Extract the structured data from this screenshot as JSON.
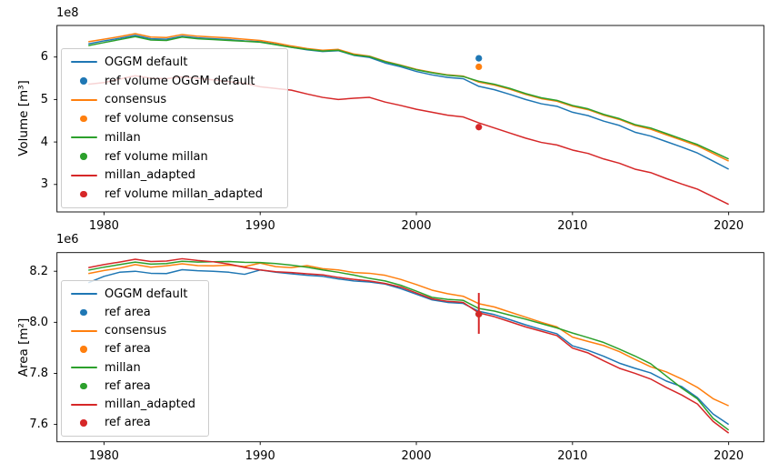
{
  "figure": {
    "background": "#ffffff",
    "border_color": "#000000",
    "legend_edge_color": "#cccccc"
  },
  "chart_data": [
    {
      "type": "line",
      "title": "",
      "xlabel": "",
      "ylabel": "Volume [m³]",
      "offset_text": "1e8",
      "unit_scale": "1e8",
      "grid": false,
      "x": [
        1979,
        1980,
        1981,
        1982,
        1983,
        1984,
        1985,
        1986,
        1987,
        1988,
        1989,
        1990,
        1991,
        1992,
        1993,
        1994,
        1995,
        1996,
        1997,
        1998,
        1999,
        2000,
        2001,
        2002,
        2003,
        2004,
        2005,
        2006,
        2007,
        2008,
        2009,
        2010,
        2011,
        2012,
        2013,
        2014,
        2015,
        2016,
        2017,
        2018,
        2019,
        2020
      ],
      "xlim": [
        1976.99,
        2022.25
      ],
      "ylim": [
        2.353,
        6.743
      ],
      "xticks": {
        "values": [
          1980,
          1990,
          2000,
          2010,
          2020
        ],
        "labels": [
          "1980",
          "1990",
          "2000",
          "2010",
          "2020"
        ]
      },
      "yticks": {
        "values": [
          3,
          4,
          5,
          6
        ],
        "labels": [
          "3",
          "4",
          "5",
          "6"
        ]
      },
      "series": [
        {
          "name": "OGGM default",
          "color": "#1f77b4",
          "values": [
            6.31,
            6.38,
            6.44,
            6.51,
            6.43,
            6.42,
            6.49,
            6.45,
            6.43,
            6.41,
            6.38,
            6.36,
            6.3,
            6.23,
            6.17,
            6.13,
            6.15,
            6.04,
            5.99,
            5.86,
            5.77,
            5.66,
            5.58,
            5.52,
            5.49,
            5.31,
            5.23,
            5.12,
            5.0,
            4.9,
            4.84,
            4.7,
            4.62,
            4.49,
            4.39,
            4.23,
            4.14,
            4.01,
            3.88,
            3.74,
            3.55,
            3.36
          ]
        },
        {
          "name": "consensus",
          "color": "#ff7f0e",
          "values": [
            6.36,
            6.42,
            6.48,
            6.55,
            6.47,
            6.46,
            6.53,
            6.49,
            6.47,
            6.45,
            6.42,
            6.39,
            6.33,
            6.26,
            6.2,
            6.16,
            6.18,
            6.07,
            6.02,
            5.9,
            5.81,
            5.71,
            5.64,
            5.58,
            5.55,
            5.41,
            5.34,
            5.24,
            5.12,
            5.02,
            4.96,
            4.84,
            4.76,
            4.63,
            4.53,
            4.39,
            4.3,
            4.17,
            4.04,
            3.91,
            3.73,
            3.55
          ]
        },
        {
          "name": "millan",
          "color": "#2ca02c",
          "values": [
            6.27,
            6.34,
            6.41,
            6.48,
            6.4,
            6.39,
            6.47,
            6.43,
            6.41,
            6.39,
            6.37,
            6.35,
            6.29,
            6.23,
            6.18,
            6.14,
            6.16,
            6.05,
            6.01,
            5.89,
            5.8,
            5.7,
            5.63,
            5.57,
            5.54,
            5.43,
            5.36,
            5.26,
            5.14,
            5.04,
            4.98,
            4.86,
            4.78,
            4.65,
            4.55,
            4.41,
            4.33,
            4.2,
            4.07,
            3.94,
            3.77,
            3.6
          ]
        },
        {
          "name": "millan_adapted",
          "color": "#d62728",
          "values": [
            5.36,
            5.4,
            5.48,
            5.56,
            5.5,
            5.49,
            5.53,
            5.5,
            5.46,
            5.42,
            5.38,
            5.3,
            5.26,
            5.22,
            5.13,
            5.05,
            5.0,
            5.03,
            5.05,
            4.94,
            4.86,
            4.77,
            4.7,
            4.63,
            4.59,
            4.45,
            4.33,
            4.21,
            4.09,
            3.99,
            3.93,
            3.81,
            3.73,
            3.6,
            3.5,
            3.36,
            3.28,
            3.14,
            3.01,
            2.89,
            2.71,
            2.53
          ]
        }
      ],
      "markers": [
        {
          "name": "ref volume OGGM default",
          "color": "#1f77b4",
          "x": 2004,
          "y": 5.97
        },
        {
          "name": "ref volume consensus",
          "color": "#ff7f0e",
          "x": 2004,
          "y": 5.77
        },
        {
          "name": "ref volume millan",
          "color": "#2ca02c",
          "x": 2004,
          "y": null
        },
        {
          "name": "ref volume millan_adapted",
          "color": "#d62728",
          "x": 2004,
          "y": 4.35
        }
      ],
      "legend": {
        "position": "upper left",
        "entries": [
          {
            "type": "line",
            "color": "#1f77b4",
            "label": "OGGM default"
          },
          {
            "type": "marker",
            "color": "#1f77b4",
            "label": "ref volume OGGM default"
          },
          {
            "type": "line",
            "color": "#ff7f0e",
            "label": "consensus"
          },
          {
            "type": "marker",
            "color": "#ff7f0e",
            "label": "ref volume consensus"
          },
          {
            "type": "line",
            "color": "#2ca02c",
            "label": "millan"
          },
          {
            "type": "marker",
            "color": "#2ca02c",
            "label": "ref volume millan"
          },
          {
            "type": "line",
            "color": "#d62728",
            "label": "millan_adapted"
          },
          {
            "type": "marker",
            "color": "#d62728",
            "label": "ref volume millan_adapted"
          }
        ]
      }
    },
    {
      "type": "line",
      "title": "",
      "xlabel": "",
      "ylabel": "Area [m²]",
      "offset_text": "1e6",
      "unit_scale": "1e6",
      "grid": false,
      "x": [
        1979,
        1980,
        1981,
        1982,
        1983,
        1984,
        1985,
        1986,
        1987,
        1988,
        1989,
        1990,
        1991,
        1992,
        1993,
        1994,
        1995,
        1996,
        1997,
        1998,
        1999,
        2000,
        2001,
        2002,
        2003,
        2004,
        2005,
        2006,
        2007,
        2008,
        2009,
        2010,
        2011,
        2012,
        2013,
        2014,
        2015,
        2016,
        2017,
        2018,
        2019,
        2020
      ],
      "xlim": [
        1976.99,
        2022.25
      ],
      "ylim": [
        7.532,
        8.273
      ],
      "xticks": {
        "values": [
          1980,
          1990,
          2000,
          2010,
          2020
        ],
        "labels": [
          "1980",
          "1990",
          "2000",
          "2010",
          "2020"
        ]
      },
      "yticks": {
        "values": [
          7.6,
          7.8,
          8.0,
          8.2
        ],
        "labels": [
          "7.6",
          "7.8",
          "8.0",
          "8.2"
        ]
      },
      "series": [
        {
          "name": "OGGM default",
          "color": "#1f77b4",
          "values": [
            8.155,
            8.18,
            8.196,
            8.2,
            8.192,
            8.191,
            8.206,
            8.202,
            8.2,
            8.196,
            8.188,
            8.205,
            8.196,
            8.19,
            8.184,
            8.18,
            8.17,
            8.162,
            8.158,
            8.15,
            8.132,
            8.11,
            8.088,
            8.078,
            8.074,
            8.043,
            8.03,
            8.01,
            7.99,
            7.972,
            7.955,
            7.908,
            7.89,
            7.867,
            7.84,
            7.82,
            7.802,
            7.77,
            7.748,
            7.705,
            7.641,
            7.6
          ]
        },
        {
          "name": "consensus",
          "color": "#ff7f0e",
          "values": [
            8.191,
            8.203,
            8.212,
            8.226,
            8.216,
            8.221,
            8.229,
            8.222,
            8.221,
            8.224,
            8.218,
            8.232,
            8.218,
            8.214,
            8.222,
            8.21,
            8.205,
            8.195,
            8.192,
            8.184,
            8.168,
            8.148,
            8.126,
            8.112,
            8.102,
            8.073,
            8.06,
            8.04,
            8.02,
            8.0,
            7.982,
            7.942,
            7.925,
            7.909,
            7.885,
            7.855,
            7.826,
            7.806,
            7.778,
            7.745,
            7.701,
            7.673
          ]
        },
        {
          "name": "millan",
          "color": "#2ca02c",
          "values": [
            8.204,
            8.216,
            8.226,
            8.236,
            8.228,
            8.23,
            8.239,
            8.236,
            8.237,
            8.238,
            8.235,
            8.234,
            8.23,
            8.224,
            8.216,
            8.205,
            8.196,
            8.185,
            8.172,
            8.162,
            8.145,
            8.122,
            8.098,
            8.09,
            8.086,
            8.054,
            8.044,
            8.028,
            8.012,
            7.995,
            7.978,
            7.958,
            7.94,
            7.921,
            7.895,
            7.868,
            7.838,
            7.79,
            7.742,
            7.7,
            7.624,
            7.578
          ]
        },
        {
          "name": "millan_adapted",
          "color": "#d62728",
          "values": [
            8.214,
            8.226,
            8.236,
            8.247,
            8.238,
            8.24,
            8.249,
            8.242,
            8.237,
            8.228,
            8.215,
            8.205,
            8.198,
            8.195,
            8.19,
            8.186,
            8.176,
            8.168,
            8.162,
            8.152,
            8.138,
            8.115,
            8.092,
            8.082,
            8.078,
            8.037,
            8.022,
            8.002,
            7.982,
            7.965,
            7.948,
            7.899,
            7.88,
            7.849,
            7.82,
            7.8,
            7.778,
            7.745,
            7.715,
            7.68,
            7.612,
            7.566
          ]
        }
      ],
      "markers": [
        {
          "name": "ref area",
          "color": "#1f77b4",
          "x": 2004,
          "y": 8.032
        },
        {
          "name": "ref area",
          "color": "#ff7f0e",
          "x": 2004,
          "y": 8.032
        },
        {
          "name": "ref area",
          "color": "#2ca02c",
          "x": 2004,
          "y": 8.032
        },
        {
          "name": "ref area",
          "color": "#d62728",
          "x": 2004,
          "y": 8.032,
          "yerr": [
            7.955,
            8.115
          ]
        }
      ],
      "legend": {
        "position": "upper left",
        "entries": [
          {
            "type": "line",
            "color": "#1f77b4",
            "label": "OGGM default"
          },
          {
            "type": "marker",
            "color": "#1f77b4",
            "label": "ref area"
          },
          {
            "type": "line",
            "color": "#ff7f0e",
            "label": "consensus"
          },
          {
            "type": "marker",
            "color": "#ff7f0e",
            "label": "ref area"
          },
          {
            "type": "line",
            "color": "#2ca02c",
            "label": "millan"
          },
          {
            "type": "marker",
            "color": "#2ca02c",
            "label": "ref area"
          },
          {
            "type": "line",
            "color": "#d62728",
            "label": "millan_adapted"
          },
          {
            "type": "marker",
            "color": "#d62728",
            "label": "ref area"
          }
        ]
      }
    }
  ]
}
